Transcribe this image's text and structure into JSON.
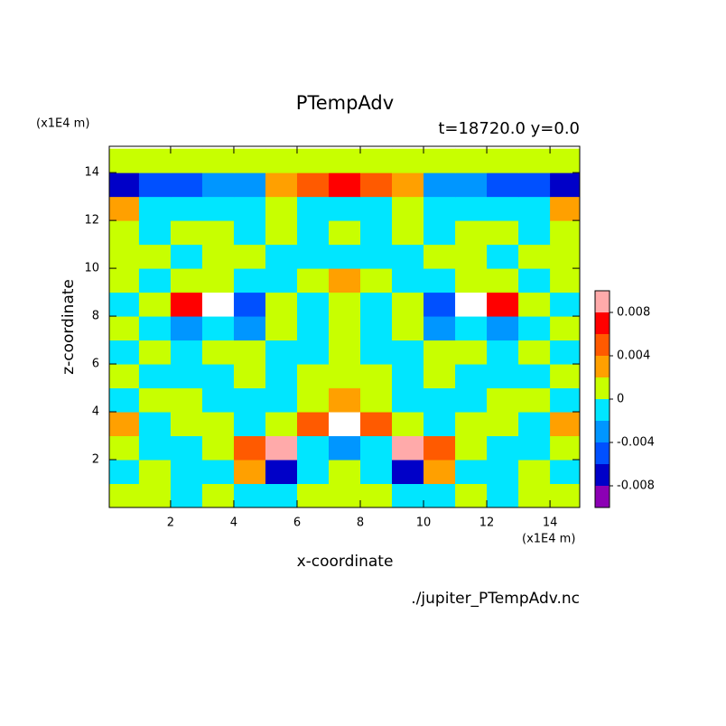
{
  "chart_data": {
    "type": "contour",
    "title": "PTempAdv",
    "subtitle": "t=18720.0 y=0.0",
    "x_label": "x-coordinate",
    "y_label": "z-coordinate",
    "x_unit": "(x1E4 m)",
    "y_unit": "(x1E4 m)",
    "source": "./jupiter_PTempAdv.nc",
    "xlim": [
      0.06,
      14.94
    ],
    "ylim": [
      0,
      15.1
    ],
    "xticks": [
      2,
      4,
      6,
      8,
      10,
      12,
      14
    ],
    "yticks": [
      2,
      4,
      6,
      8,
      10,
      12,
      14
    ],
    "x": [
      0.5,
      1.5,
      2.5,
      3.5,
      4.5,
      5.5,
      6.5,
      7.5,
      8.5,
      9.5,
      10.5,
      11.5,
      12.5,
      13.5,
      14.5
    ],
    "z": [
      0.5,
      1.5,
      2.5,
      3.5,
      4.5,
      5.5,
      6.5,
      7.5,
      8.5,
      9.5,
      10.5,
      11.5,
      12.5,
      13.5,
      14.5
    ],
    "values": [
      [
        0.001,
        0.001,
        -0.001,
        0.001,
        -0.001,
        -0.001,
        0.001,
        0.001,
        0.001,
        -0.001,
        -0.001,
        0.001,
        -0.001,
        0.001,
        0.001
      ],
      [
        -0.001,
        0.001,
        -0.001,
        -0.001,
        0.003,
        -0.007,
        -0.001,
        0.001,
        -0.001,
        -0.007,
        0.003,
        -0.001,
        -0.001,
        0.001,
        -0.001
      ],
      [
        0.001,
        -0.001,
        -0.001,
        0.001,
        0.005,
        0.009,
        -0.001,
        -0.003,
        -0.001,
        0.009,
        0.005,
        0.001,
        -0.001,
        -0.001,
        0.001
      ],
      [
        0.003,
        -0.001,
        0.001,
        0.001,
        -0.001,
        0.001,
        0.005,
        0.011,
        0.005,
        0.001,
        -0.001,
        0.001,
        0.001,
        -0.001,
        0.003
      ],
      [
        -0.001,
        0.001,
        0.001,
        -0.001,
        -0.001,
        -0.001,
        0.001,
        0.003,
        0.001,
        -0.001,
        -0.001,
        -0.001,
        0.001,
        0.001,
        -0.001
      ],
      [
        0.001,
        -0.001,
        -0.001,
        -0.001,
        0.001,
        -0.001,
        0.001,
        0.001,
        0.001,
        -0.001,
        0.001,
        -0.001,
        -0.001,
        -0.001,
        0.001
      ],
      [
        -0.001,
        0.001,
        -0.001,
        0.001,
        0.001,
        -0.001,
        -0.001,
        0.001,
        -0.001,
        -0.001,
        0.001,
        0.001,
        -0.001,
        0.001,
        -0.001
      ],
      [
        0.001,
        -0.001,
        -0.003,
        -0.001,
        -0.003,
        0.001,
        -0.001,
        0.001,
        -0.001,
        0.001,
        -0.003,
        -0.001,
        -0.003,
        -0.001,
        0.001
      ],
      [
        -0.001,
        0.001,
        0.007,
        0.011,
        -0.005,
        0.001,
        -0.001,
        0.001,
        -0.001,
        0.001,
        -0.005,
        0.011,
        0.007,
        0.001,
        -0.001
      ],
      [
        0.001,
        -0.001,
        0.001,
        0.001,
        -0.001,
        -0.001,
        0.001,
        0.003,
        0.001,
        -0.001,
        -0.001,
        0.001,
        0.001,
        -0.001,
        0.001
      ],
      [
        0.001,
        0.001,
        -0.001,
        0.001,
        0.001,
        -0.001,
        -0.001,
        -0.001,
        -0.001,
        -0.001,
        0.001,
        0.001,
        -0.001,
        0.001,
        0.001
      ],
      [
        0.001,
        -0.001,
        0.001,
        0.001,
        -0.001,
        0.001,
        -0.001,
        0.001,
        -0.001,
        0.001,
        -0.001,
        0.001,
        0.001,
        -0.001,
        0.001
      ],
      [
        0.003,
        -0.001,
        -0.001,
        -0.001,
        -0.001,
        0.001,
        -0.001,
        -0.001,
        -0.001,
        0.001,
        -0.001,
        -0.001,
        -0.001,
        -0.001,
        0.003
      ],
      [
        -0.007,
        -0.005,
        -0.005,
        -0.003,
        -0.003,
        0.003,
        0.005,
        0.007,
        0.005,
        0.003,
        -0.003,
        -0.003,
        -0.005,
        -0.005,
        -0.007
      ],
      [
        0.001,
        0.001,
        0.001,
        0.001,
        0.001,
        0.001,
        0.001,
        0.001,
        0.001,
        0.001,
        0.001,
        0.001,
        0.001,
        0.001,
        0.001
      ]
    ],
    "levels": [
      -0.01,
      -0.008,
      -0.006,
      -0.004,
      -0.002,
      0,
      0.002,
      0.004,
      0.006,
      0.008,
      0.01
    ],
    "colors": [
      "#8c00b4",
      "#0000c8",
      "#0050ff",
      "#0096ff",
      "#00e6ff",
      "#c8ff00",
      "#ffa000",
      "#ff5a00",
      "#ff0000",
      "#ffaaaa"
    ],
    "over_color": "#ffffff",
    "colorbar_ticks": [
      -0.008,
      -0.004,
      0,
      0.004,
      0.008
    ]
  }
}
